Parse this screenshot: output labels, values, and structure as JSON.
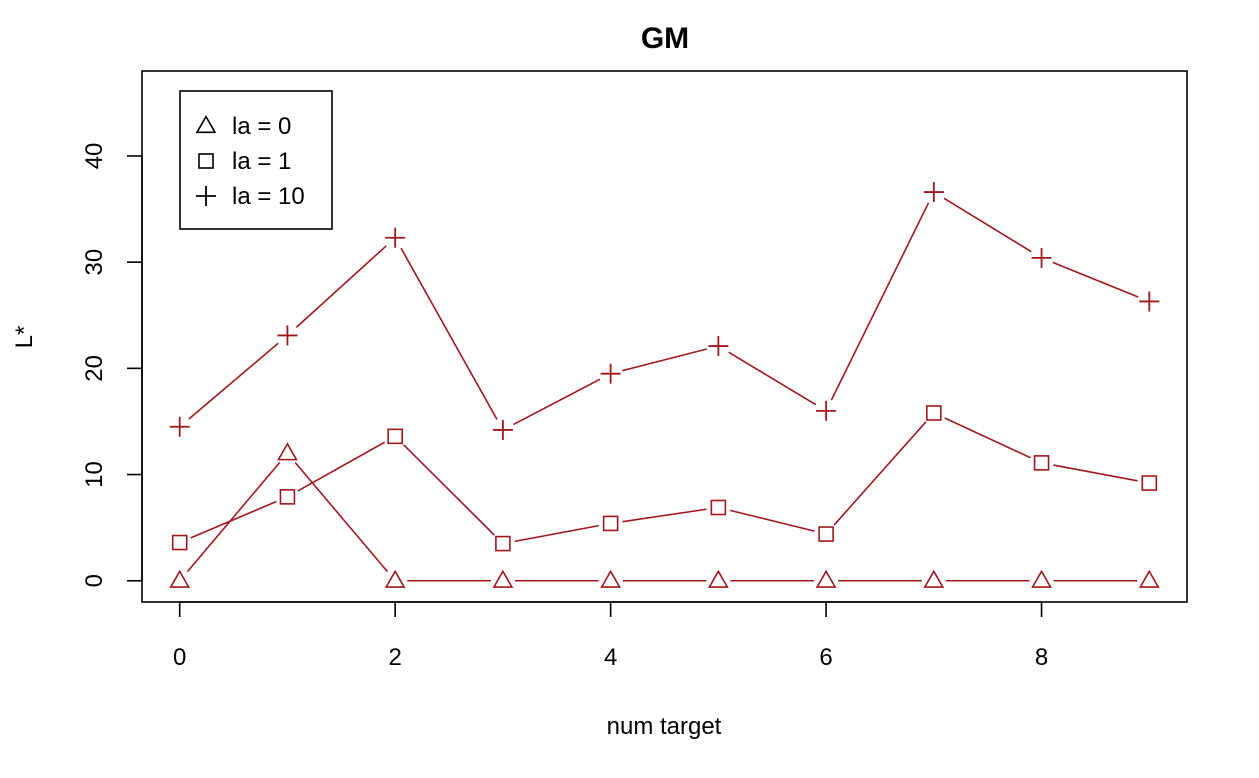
{
  "chart_data": {
    "type": "line",
    "title": "GM",
    "xlabel": "num target",
    "ylabel": "L*",
    "x": [
      0,
      1,
      2,
      3,
      4,
      5,
      6,
      7,
      8,
      9
    ],
    "xlim": [
      -0.35,
      9.35
    ],
    "ylim": [
      -2,
      48
    ],
    "xticks": [
      0,
      2,
      4,
      6,
      8
    ],
    "yticks": [
      0,
      10,
      20,
      30,
      40
    ],
    "grid": false,
    "legend_position": "top-left",
    "line_color": "#A0181E",
    "series": [
      {
        "name": "la = 0",
        "marker": "triangle",
        "values": [
          0,
          12.0,
          0,
          0,
          0,
          0,
          0,
          0,
          0,
          0
        ]
      },
      {
        "name": "la = 1",
        "marker": "square",
        "values": [
          3.6,
          7.9,
          13.6,
          3.5,
          5.4,
          6.9,
          4.4,
          15.8,
          11.1,
          9.2
        ]
      },
      {
        "name": "la = 10",
        "marker": "plus",
        "values": [
          14.5,
          23.1,
          32.3,
          14.2,
          19.5,
          22.1,
          16.0,
          36.6,
          30.4,
          26.3
        ]
      }
    ]
  }
}
